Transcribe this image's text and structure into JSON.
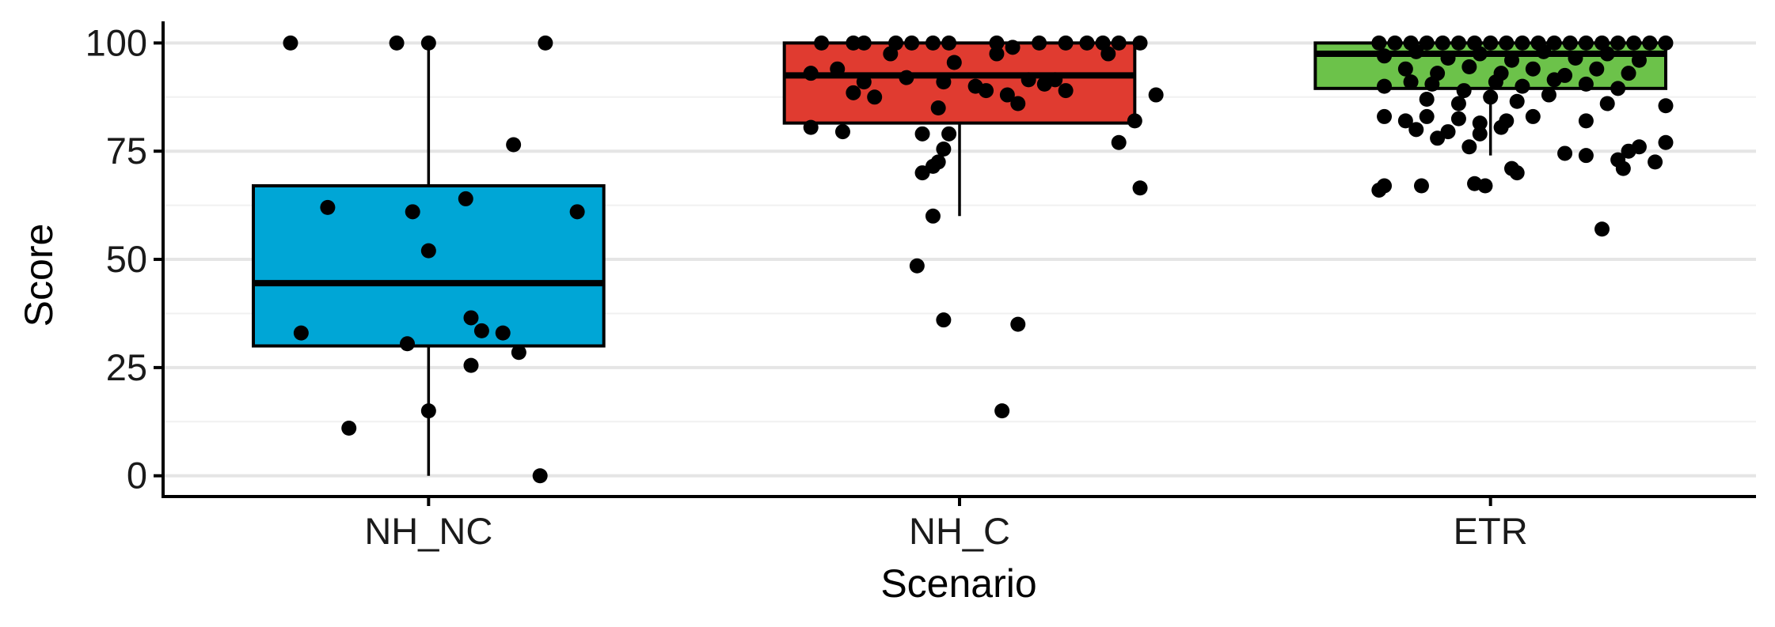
{
  "chart_data": {
    "type": "box",
    "title": "",
    "xlabel": "Scenario",
    "ylabel": "Score",
    "ylim": [
      -4.8,
      105
    ],
    "yticks": [
      0,
      25,
      50,
      75,
      100
    ],
    "grid": {
      "major_y": true,
      "minor_y": true,
      "x": false
    },
    "legend": "none",
    "categories": [
      "NH_NC",
      "NH_C",
      "ETR"
    ],
    "colors": {
      "NH_NC": "#00a6d6",
      "NH_C": "#e03b30",
      "ETR": "#6cc24a"
    },
    "boxes": [
      {
        "category": "NH_NC",
        "q1": 30,
        "median": 44.5,
        "q3": 67,
        "whisker_low": 0,
        "whisker_high": 100
      },
      {
        "category": "NH_C",
        "q1": 81.5,
        "median": 92.5,
        "q3": 100,
        "whisker_low": 60,
        "whisker_high": 100
      },
      {
        "category": "ETR",
        "q1": 89.5,
        "median": 97.5,
        "q3": 100,
        "whisker_low": 74,
        "whisker_high": 100
      }
    ],
    "points": {
      "NH_NC": [
        {
          "x": -0.26,
          "y": 100
        },
        {
          "x": -0.06,
          "y": 100
        },
        {
          "x": 0.0,
          "y": 100
        },
        {
          "x": 0.22,
          "y": 100
        },
        {
          "x": 0.16,
          "y": 76.5
        },
        {
          "x": -0.19,
          "y": 62
        },
        {
          "x": -0.03,
          "y": 61
        },
        {
          "x": 0.07,
          "y": 64
        },
        {
          "x": 0.28,
          "y": 61
        },
        {
          "x": 0.0,
          "y": 52
        },
        {
          "x": -0.24,
          "y": 33
        },
        {
          "x": -0.04,
          "y": 30.5
        },
        {
          "x": 0.08,
          "y": 36.5
        },
        {
          "x": 0.1,
          "y": 33.5
        },
        {
          "x": 0.14,
          "y": 33
        },
        {
          "x": 0.17,
          "y": 28.5
        },
        {
          "x": 0.08,
          "y": 25.5
        },
        {
          "x": 0.0,
          "y": 15
        },
        {
          "x": -0.15,
          "y": 11
        },
        {
          "x": 0.21,
          "y": 0
        }
      ],
      "NH_C": [
        {
          "x": -0.26,
          "y": 100
        },
        {
          "x": -0.2,
          "y": 100
        },
        {
          "x": -0.18,
          "y": 100
        },
        {
          "x": -0.12,
          "y": 100
        },
        {
          "x": -0.09,
          "y": 100
        },
        {
          "x": -0.05,
          "y": 100
        },
        {
          "x": -0.02,
          "y": 100
        },
        {
          "x": 0.07,
          "y": 100
        },
        {
          "x": 0.1,
          "y": 99
        },
        {
          "x": 0.15,
          "y": 100
        },
        {
          "x": 0.2,
          "y": 100
        },
        {
          "x": 0.24,
          "y": 100
        },
        {
          "x": 0.27,
          "y": 100
        },
        {
          "x": 0.3,
          "y": 100
        },
        {
          "x": 0.34,
          "y": 100
        },
        {
          "x": 0.28,
          "y": 97.5
        },
        {
          "x": -0.13,
          "y": 97.5
        },
        {
          "x": -0.01,
          "y": 95.5
        },
        {
          "x": 0.07,
          "y": 97.5
        },
        {
          "x": -0.28,
          "y": 93
        },
        {
          "x": -0.23,
          "y": 94
        },
        {
          "x": -0.18,
          "y": 91
        },
        {
          "x": -0.1,
          "y": 92
        },
        {
          "x": -0.03,
          "y": 91
        },
        {
          "x": 0.03,
          "y": 90
        },
        {
          "x": 0.05,
          "y": 89
        },
        {
          "x": 0.09,
          "y": 88
        },
        {
          "x": 0.13,
          "y": 91.5
        },
        {
          "x": 0.16,
          "y": 90.5
        },
        {
          "x": 0.18,
          "y": 91.5
        },
        {
          "x": -0.2,
          "y": 88.5
        },
        {
          "x": -0.16,
          "y": 87.5
        },
        {
          "x": 0.11,
          "y": 86
        },
        {
          "x": 0.2,
          "y": 89
        },
        {
          "x": 0.37,
          "y": 88
        },
        {
          "x": -0.04,
          "y": 85
        },
        {
          "x": 0.33,
          "y": 82
        },
        {
          "x": -0.28,
          "y": 80.5
        },
        {
          "x": -0.22,
          "y": 79.5
        },
        {
          "x": -0.07,
          "y": 79
        },
        {
          "x": -0.02,
          "y": 79
        },
        {
          "x": -0.03,
          "y": 75.5
        },
        {
          "x": 0.3,
          "y": 77
        },
        {
          "x": -0.04,
          "y": 72.5
        },
        {
          "x": -0.05,
          "y": 71.5
        },
        {
          "x": -0.07,
          "y": 70
        },
        {
          "x": 0.34,
          "y": 66.5
        },
        {
          "x": -0.05,
          "y": 60
        },
        {
          "x": -0.08,
          "y": 48.5
        },
        {
          "x": -0.03,
          "y": 36
        },
        {
          "x": 0.11,
          "y": 35
        },
        {
          "x": 0.08,
          "y": 15
        }
      ],
      "ETR": [
        {
          "x": -0.21,
          "y": 100
        },
        {
          "x": -0.18,
          "y": 100
        },
        {
          "x": -0.15,
          "y": 100
        },
        {
          "x": -0.12,
          "y": 100
        },
        {
          "x": -0.09,
          "y": 100
        },
        {
          "x": -0.06,
          "y": 100
        },
        {
          "x": -0.03,
          "y": 100
        },
        {
          "x": 0.0,
          "y": 100
        },
        {
          "x": 0.03,
          "y": 100
        },
        {
          "x": 0.06,
          "y": 100
        },
        {
          "x": 0.09,
          "y": 100
        },
        {
          "x": 0.12,
          "y": 100
        },
        {
          "x": 0.15,
          "y": 100
        },
        {
          "x": 0.18,
          "y": 100
        },
        {
          "x": 0.21,
          "y": 100
        },
        {
          "x": 0.24,
          "y": 100
        },
        {
          "x": 0.27,
          "y": 100
        },
        {
          "x": 0.3,
          "y": 100
        },
        {
          "x": 0.33,
          "y": 100
        },
        {
          "x": -0.2,
          "y": 97
        },
        {
          "x": -0.14,
          "y": 98
        },
        {
          "x": -0.08,
          "y": 96.5
        },
        {
          "x": -0.02,
          "y": 97.5
        },
        {
          "x": 0.04,
          "y": 96
        },
        {
          "x": 0.1,
          "y": 98
        },
        {
          "x": 0.16,
          "y": 96.5
        },
        {
          "x": 0.22,
          "y": 97.5
        },
        {
          "x": 0.28,
          "y": 96
        },
        {
          "x": -0.16,
          "y": 94
        },
        {
          "x": -0.1,
          "y": 93
        },
        {
          "x": -0.04,
          "y": 94.5
        },
        {
          "x": 0.02,
          "y": 93
        },
        {
          "x": 0.08,
          "y": 94
        },
        {
          "x": 0.14,
          "y": 92.5
        },
        {
          "x": 0.2,
          "y": 94
        },
        {
          "x": 0.26,
          "y": 93
        },
        {
          "x": -0.2,
          "y": 90
        },
        {
          "x": -0.15,
          "y": 91
        },
        {
          "x": -0.11,
          "y": 90.5
        },
        {
          "x": -0.05,
          "y": 89
        },
        {
          "x": 0.01,
          "y": 91
        },
        {
          "x": 0.06,
          "y": 90
        },
        {
          "x": 0.12,
          "y": 91.5
        },
        {
          "x": 0.18,
          "y": 90.5
        },
        {
          "x": 0.24,
          "y": 89.5
        },
        {
          "x": -0.12,
          "y": 87
        },
        {
          "x": -0.06,
          "y": 86
        },
        {
          "x": 0.0,
          "y": 87.5
        },
        {
          "x": 0.05,
          "y": 86.5
        },
        {
          "x": 0.11,
          "y": 88
        },
        {
          "x": 0.22,
          "y": 86
        },
        {
          "x": 0.33,
          "y": 85.5
        },
        {
          "x": -0.2,
          "y": 83
        },
        {
          "x": -0.16,
          "y": 82
        },
        {
          "x": -0.12,
          "y": 83
        },
        {
          "x": -0.06,
          "y": 82.5
        },
        {
          "x": -0.02,
          "y": 81.5
        },
        {
          "x": 0.03,
          "y": 82
        },
        {
          "x": 0.08,
          "y": 83
        },
        {
          "x": 0.18,
          "y": 82
        },
        {
          "x": -0.14,
          "y": 80
        },
        {
          "x": -0.08,
          "y": 79.5
        },
        {
          "x": -0.1,
          "y": 78
        },
        {
          "x": -0.02,
          "y": 79
        },
        {
          "x": 0.02,
          "y": 80.5
        },
        {
          "x": -0.04,
          "y": 76
        },
        {
          "x": 0.14,
          "y": 74.5
        },
        {
          "x": 0.18,
          "y": 74
        },
        {
          "x": 0.24,
          "y": 73
        },
        {
          "x": 0.26,
          "y": 75
        },
        {
          "x": 0.28,
          "y": 76
        },
        {
          "x": 0.33,
          "y": 77
        },
        {
          "x": 0.25,
          "y": 71
        },
        {
          "x": 0.31,
          "y": 72.5
        },
        {
          "x": 0.04,
          "y": 71
        },
        {
          "x": 0.05,
          "y": 70
        },
        {
          "x": -0.2,
          "y": 67
        },
        {
          "x": -0.21,
          "y": 66
        },
        {
          "x": -0.13,
          "y": 67
        },
        {
          "x": -0.03,
          "y": 67.5
        },
        {
          "x": -0.01,
          "y": 67
        },
        {
          "x": 0.21,
          "y": 57
        }
      ]
    }
  }
}
